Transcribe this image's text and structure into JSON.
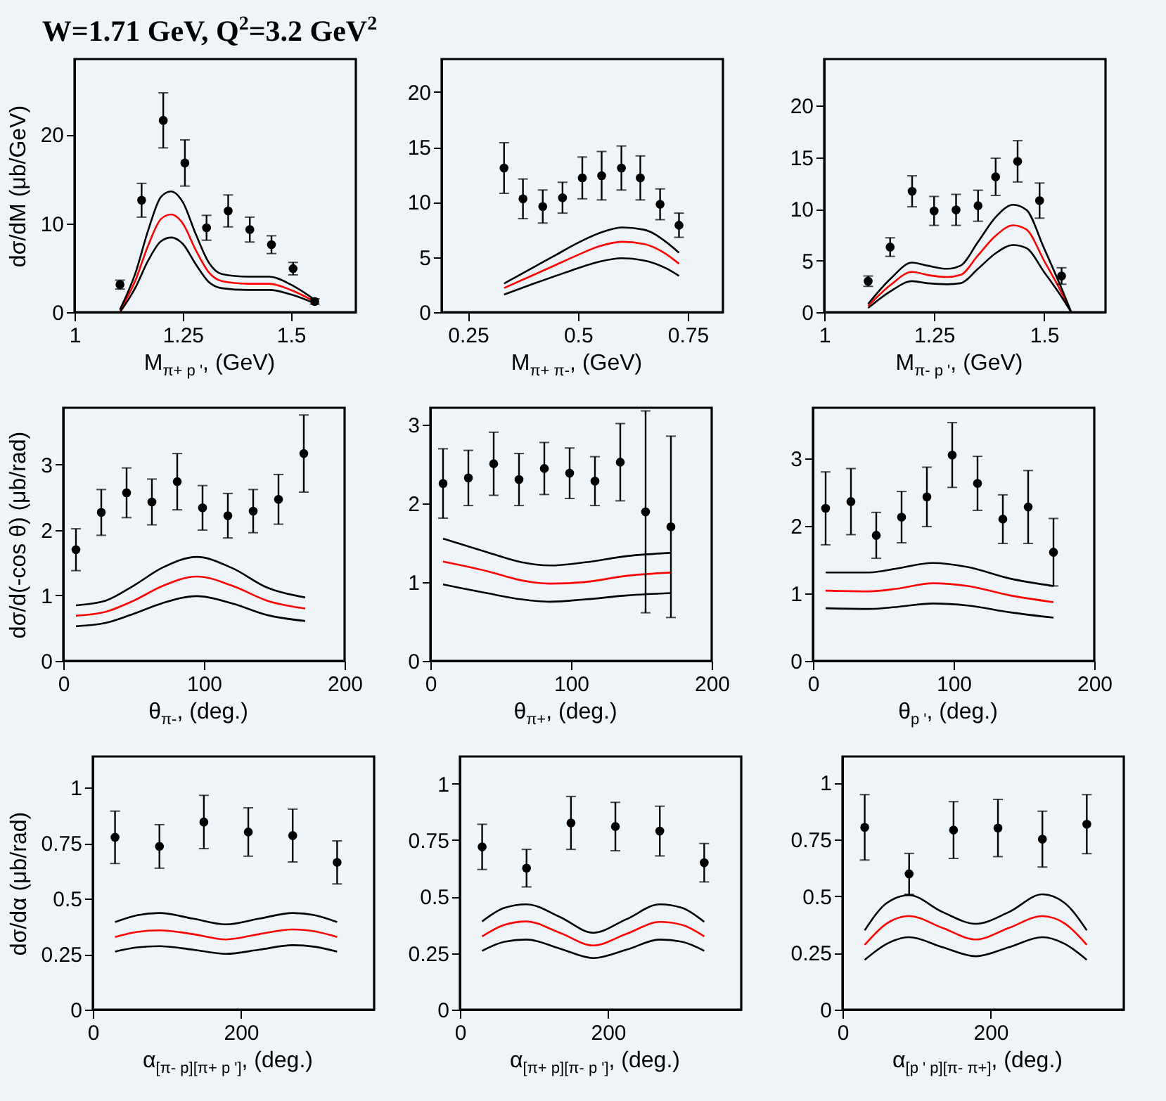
{
  "chart_data": [
    {
      "type": "scatter",
      "title": "W=1.71 GeV, Q$^{2}$=3.2 GeV$^{2}$",
      "xlabel": "M$_{π+ p '}$, (GeV)",
      "ylabel": "dσ/dM (μb/GeV)",
      "xlim": [
        1,
        1.65
      ],
      "ylim": [
        0,
        28.5
      ],
      "xticks": [
        1,
        1.25,
        1.5
      ],
      "yticks": [
        0,
        10,
        20
      ],
      "series": [
        {
          "color": "#000000",
          "marker": "circle",
          "x": [
            1.105,
            1.155,
            1.205,
            1.255,
            1.305,
            1.355,
            1.405,
            1.455,
            1.505,
            1.555
          ],
          "values": [
            3.1,
            12.6,
            21.6,
            16.8,
            9.5,
            11.4,
            9.3,
            7.6,
            4.9,
            1.2
          ],
          "errors": [
            0.5,
            1.9,
            3.1,
            2.6,
            1.4,
            1.8,
            1.4,
            1.0,
            0.7,
            0.3
          ]
        },
        {
          "type": "line",
          "color": "#ff0000",
          "x": [
            1.105,
            1.14,
            1.17,
            1.2,
            1.223,
            1.25,
            1.28,
            1.31,
            1.34,
            1.4,
            1.45,
            1.5,
            1.555
          ],
          "values": [
            0.2,
            3.5,
            7.5,
            10.5,
            11,
            10,
            7,
            4.5,
            3.5,
            3.2,
            3.2,
            2.5,
            1.2
          ]
        },
        {
          "type": "line",
          "color": "#000000",
          "x": [
            1.105,
            1.14,
            1.17,
            1.2,
            1.223,
            1.25,
            1.28,
            1.31,
            1.34,
            1.4,
            1.45,
            1.5,
            1.555
          ],
          "values": [
            0.3,
            4.3,
            9.2,
            13,
            13.6,
            12.4,
            8.8,
            5.6,
            4.3,
            4,
            4,
            3.1,
            1.4
          ]
        },
        {
          "type": "line",
          "color": "#000000",
          "x": [
            1.105,
            1.14,
            1.17,
            1.2,
            1.223,
            1.25,
            1.28,
            1.31,
            1.34,
            1.4,
            1.45,
            1.5,
            1.555
          ],
          "values": [
            0,
            2.7,
            5.8,
            8,
            8.4,
            7.7,
            5.4,
            3.4,
            2.7,
            2.5,
            2.5,
            2.0,
            1.0
          ]
        }
      ]
    },
    {
      "type": "scatter",
      "xlabel": "M$_{π+ π-}$, (GeV)",
      "xlim": [
        0.19,
        0.83
      ],
      "ylim": [
        0,
        23
      ],
      "xticks": [
        0.25,
        0.5,
        0.75
      ],
      "yticks": [
        0,
        5,
        10,
        15,
        20
      ],
      "series": [
        {
          "color": "#000000",
          "marker": "circle",
          "x": [
            0.332,
            0.375,
            0.42,
            0.465,
            0.51,
            0.554,
            0.599,
            0.642,
            0.687,
            0.73
          ],
          "values": [
            13.1,
            10.3,
            9.6,
            10.4,
            12.2,
            12.4,
            13.1,
            12.2,
            9.8,
            7.9
          ],
          "errors": [
            2.3,
            1.8,
            1.5,
            1.4,
            1.9,
            2.2,
            2.0,
            2.0,
            1.4,
            1.1
          ]
        },
        {
          "type": "line",
          "color": "#ff0000",
          "x": [
            0.332,
            0.4,
            0.45,
            0.5,
            0.55,
            0.6,
            0.65,
            0.7,
            0.73
          ],
          "values": [
            2.2,
            3.4,
            4.3,
            5.2,
            6.0,
            6.4,
            6.2,
            5.3,
            4.4
          ]
        },
        {
          "type": "line",
          "color": "#000000",
          "x": [
            0.332,
            0.4,
            0.45,
            0.5,
            0.55,
            0.6,
            0.65,
            0.7,
            0.73
          ],
          "values": [
            2.6,
            4.1,
            5.2,
            6.3,
            7.2,
            7.7,
            7.5,
            6.4,
            5.4
          ]
        },
        {
          "type": "line",
          "color": "#000000",
          "x": [
            0.332,
            0.4,
            0.45,
            0.5,
            0.55,
            0.6,
            0.65,
            0.7,
            0.73
          ],
          "values": [
            1.6,
            2.6,
            3.3,
            4.0,
            4.6,
            4.9,
            4.7,
            4.0,
            3.3
          ]
        }
      ]
    },
    {
      "type": "scatter",
      "xlabel": "M$_{π- p '}$, (GeV)",
      "xlim": [
        1,
        1.64
      ],
      "ylim": [
        0,
        24.5
      ],
      "xticks": [
        1,
        1.25,
        1.5
      ],
      "yticks": [
        0,
        5,
        10,
        15,
        20
      ],
      "series": [
        {
          "color": "#000000",
          "marker": "circle",
          "x": [
            1.1,
            1.15,
            1.2,
            1.25,
            1.3,
            1.35,
            1.39,
            1.44,
            1.49,
            1.54
          ],
          "values": [
            3.0,
            6.3,
            11.7,
            9.8,
            9.9,
            10.3,
            13.1,
            14.6,
            10.8,
            3.5
          ],
          "errors": [
            0.5,
            0.9,
            1.5,
            1.4,
            1.5,
            1.5,
            1.8,
            2.0,
            1.7,
            0.8
          ]
        },
        {
          "type": "line",
          "color": "#ff0000",
          "x": [
            1.1,
            1.15,
            1.2,
            1.235,
            1.28,
            1.31,
            1.35,
            1.39,
            1.43,
            1.46,
            1.5,
            1.535,
            1.562
          ],
          "values": [
            0.6,
            2.6,
            3.9,
            3.6,
            3.4,
            3.6,
            5.5,
            7.4,
            8.4,
            8.0,
            5.0,
            2.3,
            0
          ]
        },
        {
          "type": "line",
          "color": "#000000",
          "x": [
            1.1,
            1.15,
            1.2,
            1.235,
            1.28,
            1.31,
            1.35,
            1.39,
            1.43,
            1.46,
            1.5,
            1.535,
            1.562
          ],
          "values": [
            0.8,
            3.2,
            4.8,
            4.5,
            4.2,
            4.5,
            6.8,
            9.2,
            10.4,
            9.9,
            6.2,
            2.8,
            0
          ]
        },
        {
          "type": "line",
          "color": "#000000",
          "x": [
            1.1,
            1.15,
            1.2,
            1.235,
            1.28,
            1.31,
            1.35,
            1.39,
            1.43,
            1.46,
            1.5,
            1.535,
            1.562
          ],
          "values": [
            0.4,
            2.0,
            3.0,
            2.8,
            2.7,
            2.8,
            4.2,
            5.7,
            6.5,
            6.2,
            3.9,
            1.8,
            0
          ]
        }
      ]
    },
    {
      "type": "scatter",
      "xlabel": "θ$_{π-}$, (deg.)",
      "ylabel": "dσ/d(-cos θ) (μb/rad)",
      "xlim": [
        0,
        200
      ],
      "ylim": [
        0,
        3.87
      ],
      "xticks": [
        0,
        100,
        200
      ],
      "yticks": [
        0,
        1,
        2,
        3
      ],
      "series": [
        {
          "color": "#000000",
          "marker": "circle",
          "x": [
            9,
            27,
            45,
            63,
            81,
            99,
            117,
            135,
            153,
            171
          ],
          "values": [
            1.7,
            2.27,
            2.57,
            2.43,
            2.74,
            2.34,
            2.22,
            2.29,
            2.47,
            3.17
          ],
          "errors": [
            0.32,
            0.35,
            0.38,
            0.35,
            0.43,
            0.34,
            0.34,
            0.33,
            0.38,
            0.59
          ]
        },
        {
          "type": "line",
          "color": "#ff0000",
          "x": [
            9,
            30,
            50,
            70,
            95,
            120,
            145,
            172
          ],
          "values": [
            0.69,
            0.75,
            0.92,
            1.14,
            1.29,
            1.15,
            0.92,
            0.8
          ]
        },
        {
          "type": "line",
          "color": "#000000",
          "x": [
            9,
            30,
            50,
            70,
            95,
            120,
            145,
            172
          ],
          "values": [
            0.85,
            0.92,
            1.15,
            1.42,
            1.59,
            1.42,
            1.12,
            0.97
          ]
        },
        {
          "type": "line",
          "color": "#000000",
          "x": [
            9,
            30,
            50,
            70,
            95,
            120,
            145,
            172
          ],
          "values": [
            0.53,
            0.58,
            0.72,
            0.88,
            0.99,
            0.88,
            0.7,
            0.61
          ]
        }
      ]
    },
    {
      "type": "scatter",
      "xlabel": "θ$_{π+}$, (deg.)",
      "xlim": [
        0,
        200
      ],
      "ylim": [
        0,
        3.21
      ],
      "xticks": [
        0,
        100,
        200
      ],
      "yticks": [
        0,
        1,
        2,
        3
      ],
      "series": [
        {
          "color": "#000000",
          "marker": "circle",
          "x": [
            9,
            27,
            45,
            63,
            81,
            99,
            117,
            135,
            153,
            171
          ],
          "values": [
            2.25,
            2.32,
            2.5,
            2.3,
            2.44,
            2.38,
            2.28,
            2.52,
            1.89,
            1.7
          ],
          "errors": [
            0.44,
            0.35,
            0.4,
            0.33,
            0.33,
            0.32,
            0.31,
            0.49,
            1.28,
            1.15
          ]
        },
        {
          "type": "line",
          "color": "#ff0000",
          "x": [
            9,
            40,
            65,
            85,
            110,
            140,
            171
          ],
          "values": [
            1.26,
            1.14,
            1.02,
            0.98,
            1.0,
            1.08,
            1.12
          ]
        },
        {
          "type": "line",
          "color": "#000000",
          "x": [
            9,
            40,
            65,
            85,
            110,
            140,
            171
          ],
          "values": [
            1.55,
            1.38,
            1.25,
            1.21,
            1.25,
            1.33,
            1.37
          ]
        },
        {
          "type": "line",
          "color": "#000000",
          "x": [
            9,
            40,
            65,
            85,
            110,
            140,
            171
          ],
          "values": [
            0.97,
            0.86,
            0.78,
            0.75,
            0.78,
            0.83,
            0.86
          ]
        }
      ]
    },
    {
      "type": "scatter",
      "xlabel": "θ$_{p '}$, (deg.)",
      "xlim": [
        0,
        200
      ],
      "ylim": [
        0,
        3.75
      ],
      "xticks": [
        0,
        100,
        200
      ],
      "yticks": [
        0,
        1,
        2,
        3
      ],
      "series": [
        {
          "color": "#000000",
          "marker": "circle",
          "x": [
            9,
            27,
            45,
            63,
            81,
            99,
            117,
            135,
            153,
            171
          ],
          "values": [
            2.26,
            2.36,
            1.86,
            2.13,
            2.43,
            3.05,
            2.63,
            2.1,
            2.28,
            1.61
          ],
          "errors": [
            0.54,
            0.49,
            0.34,
            0.38,
            0.44,
            0.48,
            0.4,
            0.36,
            0.54,
            0.5
          ]
        },
        {
          "type": "line",
          "color": "#ff0000",
          "x": [
            9,
            40,
            60,
            85,
            110,
            140,
            171
          ],
          "values": [
            1.04,
            1.03,
            1.07,
            1.15,
            1.11,
            0.97,
            0.87
          ]
        },
        {
          "type": "line",
          "color": "#000000",
          "x": [
            9,
            40,
            60,
            85,
            110,
            140,
            171
          ],
          "values": [
            1.31,
            1.31,
            1.37,
            1.45,
            1.39,
            1.22,
            1.11
          ]
        },
        {
          "type": "line",
          "color": "#000000",
          "x": [
            9,
            40,
            60,
            85,
            110,
            140,
            171
          ],
          "values": [
            0.78,
            0.77,
            0.8,
            0.85,
            0.82,
            0.72,
            0.64
          ]
        }
      ]
    },
    {
      "type": "scatter",
      "xlabel": "α$_{[π- p][π+ p ']}$, (deg.)",
      "ylabel": "dσ/dα (μb/rad)",
      "xlim": [
        0,
        380
      ],
      "ylim": [
        0,
        1.14
      ],
      "xticks": [
        0,
        200
      ],
      "yticks": [
        0,
        0.25,
        0.5,
        0.75,
        1
      ],
      "series": [
        {
          "color": "#000000",
          "marker": "circle",
          "x": [
            30,
            90,
            150,
            210,
            270,
            330
          ],
          "values": [
            0.776,
            0.735,
            0.845,
            0.8,
            0.784,
            0.663
          ],
          "errors": [
            0.118,
            0.098,
            0.12,
            0.109,
            0.119,
            0.097
          ]
        },
        {
          "type": "line",
          "color": "#ff0000",
          "x": [
            30,
            60,
            90,
            135,
            180,
            225,
            270,
            300,
            330
          ],
          "values": [
            0.327,
            0.35,
            0.357,
            0.34,
            0.316,
            0.34,
            0.361,
            0.352,
            0.327
          ]
        },
        {
          "type": "line",
          "color": "#000000",
          "x": [
            30,
            60,
            90,
            135,
            180,
            225,
            270,
            300,
            330
          ],
          "values": [
            0.394,
            0.425,
            0.435,
            0.41,
            0.384,
            0.41,
            0.435,
            0.425,
            0.394
          ]
        },
        {
          "type": "line",
          "color": "#000000",
          "x": [
            30,
            60,
            90,
            135,
            180,
            225,
            270,
            300,
            330
          ],
          "values": [
            0.261,
            0.28,
            0.286,
            0.27,
            0.251,
            0.27,
            0.29,
            0.283,
            0.261
          ]
        }
      ]
    },
    {
      "type": "scatter",
      "xlabel": "α$_{[π+ p][π- p ']}$, (deg.)",
      "xlim": [
        0,
        380
      ],
      "ylim": [
        0,
        1.12
      ],
      "xticks": [
        0,
        200
      ],
      "yticks": [
        0,
        0.25,
        0.5,
        0.75,
        1
      ],
      "series": [
        {
          "color": "#000000",
          "marker": "circle",
          "x": [
            30,
            90,
            150,
            210,
            270,
            330
          ],
          "values": [
            0.72,
            0.626,
            0.826,
            0.81,
            0.79,
            0.65
          ],
          "errors": [
            0.1,
            0.083,
            0.117,
            0.107,
            0.11,
            0.085
          ]
        },
        {
          "type": "line",
          "color": "#ff0000",
          "x": [
            30,
            60,
            90,
            135,
            180,
            225,
            270,
            300,
            330
          ],
          "values": [
            0.324,
            0.375,
            0.39,
            0.34,
            0.284,
            0.335,
            0.388,
            0.375,
            0.324
          ]
        },
        {
          "type": "line",
          "color": "#000000",
          "x": [
            30,
            60,
            90,
            135,
            180,
            225,
            270,
            300,
            330
          ],
          "values": [
            0.39,
            0.45,
            0.466,
            0.41,
            0.34,
            0.4,
            0.466,
            0.45,
            0.388
          ]
        },
        {
          "type": "line",
          "color": "#000000",
          "x": [
            30,
            60,
            90,
            135,
            180,
            225,
            270,
            300,
            330
          ],
          "values": [
            0.26,
            0.3,
            0.31,
            0.27,
            0.228,
            0.265,
            0.31,
            0.3,
            0.26
          ]
        }
      ]
    },
    {
      "type": "scatter",
      "xlabel": "α$_{[p ' p][π- π+]}$, (deg.)",
      "xlim": [
        0,
        380
      ],
      "ylim": [
        0,
        1.115
      ],
      "xticks": [
        0,
        200
      ],
      "yticks": [
        0,
        0.25,
        0.5,
        0.75,
        1
      ],
      "series": [
        {
          "color": "#000000",
          "marker": "circle",
          "x": [
            30,
            90,
            150,
            210,
            270,
            330
          ],
          "values": [
            0.803,
            0.598,
            0.791,
            0.8,
            0.751,
            0.817
          ],
          "errors": [
            0.144,
            0.09,
            0.125,
            0.126,
            0.123,
            0.13
          ]
        },
        {
          "type": "line",
          "color": "#ff0000",
          "x": [
            30,
            60,
            90,
            135,
            180,
            225,
            270,
            300,
            330
          ],
          "values": [
            0.285,
            0.38,
            0.412,
            0.36,
            0.309,
            0.36,
            0.412,
            0.38,
            0.285
          ]
        },
        {
          "type": "line",
          "color": "#000000",
          "x": [
            30,
            60,
            90,
            135,
            180,
            225,
            270,
            300,
            330
          ],
          "values": [
            0.349,
            0.47,
            0.504,
            0.43,
            0.378,
            0.43,
            0.508,
            0.47,
            0.349
          ]
        },
        {
          "type": "line",
          "color": "#000000",
          "x": [
            30,
            60,
            90,
            135,
            180,
            225,
            270,
            300,
            330
          ],
          "values": [
            0.219,
            0.29,
            0.319,
            0.275,
            0.235,
            0.275,
            0.319,
            0.29,
            0.219
          ]
        }
      ]
    }
  ]
}
